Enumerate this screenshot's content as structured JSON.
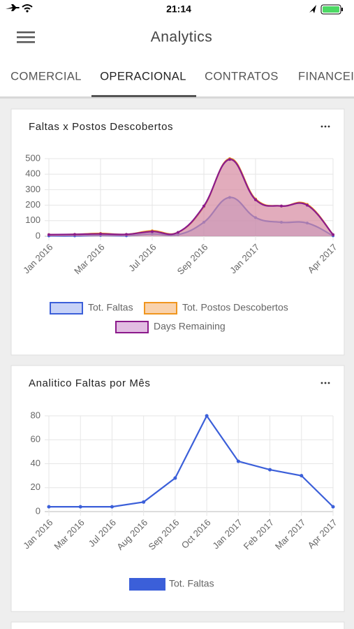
{
  "status": {
    "time": "21:14"
  },
  "header": {
    "title": "Analytics"
  },
  "tabs": [
    "COMERCIAL",
    "OPERACIONAL",
    "CONTRATOS",
    "FINANCEIRO"
  ],
  "active_tab": 1,
  "chart_data": [
    {
      "type": "area",
      "title": "Faltas x Postos Descobertos",
      "smooth": true,
      "grid": true,
      "categories": [
        "Jan 2016",
        null,
        "Mar 2016",
        null,
        "Jul 2016",
        null,
        "Sep 2016",
        null,
        "Jan 2017",
        null,
        null,
        "Apr 2017"
      ],
      "ylim": [
        0,
        500
      ],
      "yticks": [
        0,
        100,
        200,
        300,
        400,
        500
      ],
      "series": [
        {
          "name": "Tot. Faltas",
          "color": "#3b5fd9",
          "fill": "#8fa6f0",
          "values": [
            2,
            2,
            5,
            3,
            15,
            10,
            90,
            250,
            120,
            90,
            85,
            3
          ]
        },
        {
          "name": "Tot. Postos Descobertos",
          "color": "#f0961e",
          "fill": "#f4a55a",
          "values": [
            10,
            12,
            18,
            12,
            35,
            25,
            190,
            500,
            240,
            195,
            205,
            10
          ]
        },
        {
          "name": "Days Remaining",
          "color": "#8b1a8b",
          "fill": "#c67ac6",
          "values": [
            10,
            12,
            15,
            12,
            30,
            25,
            195,
            495,
            235,
            195,
            200,
            10
          ]
        }
      ]
    },
    {
      "type": "line",
      "title": "Analitico Faltas por Mês",
      "smooth": false,
      "grid": true,
      "categories": [
        "Jan 2016",
        "Mar 2016",
        "Jul 2016",
        "Aug 2016",
        "Sep 2016",
        "Oct 2016",
        "Jan 2017",
        "Feb 2017",
        "Mar 2017",
        "Apr 2017"
      ],
      "ylim": [
        0,
        80
      ],
      "yticks": [
        0,
        20,
        40,
        60,
        80
      ],
      "series": [
        {
          "name": "Tot. Faltas",
          "color": "#3b5fd9",
          "fill": "#3b5fd9",
          "values": [
            4,
            4,
            4,
            8,
            28,
            80,
            42,
            35,
            30,
            4
          ]
        }
      ]
    }
  ]
}
